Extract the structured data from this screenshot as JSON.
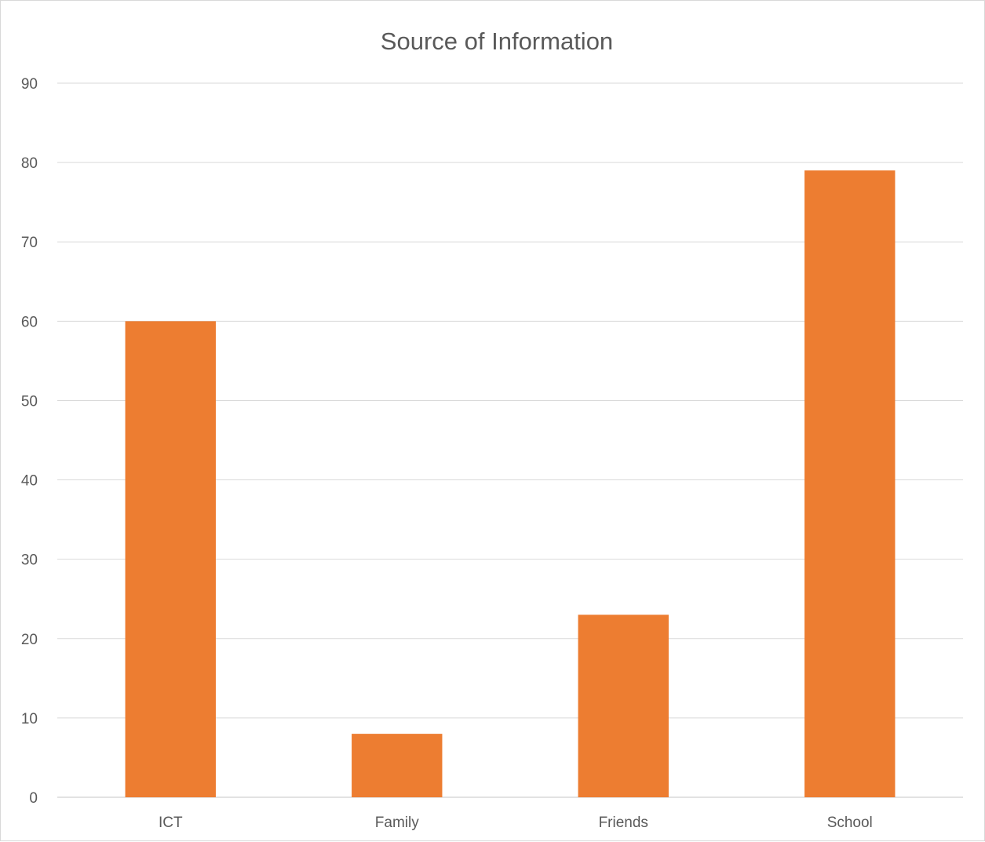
{
  "chart_data": {
    "type": "bar",
    "title": "Source of Information",
    "xlabel": "",
    "ylabel": "",
    "categories": [
      "ICT",
      "Family",
      "Friends",
      "School"
    ],
    "values": [
      60,
      8,
      23,
      79
    ],
    "ylim": [
      0,
      90
    ],
    "yticks": [
      0,
      10,
      20,
      30,
      40,
      50,
      60,
      70,
      80,
      90
    ],
    "grid": true,
    "legend": "none",
    "bar_color": "#ED7D31",
    "grid_color": "#D9D9D9",
    "text_color": "#595959"
  }
}
